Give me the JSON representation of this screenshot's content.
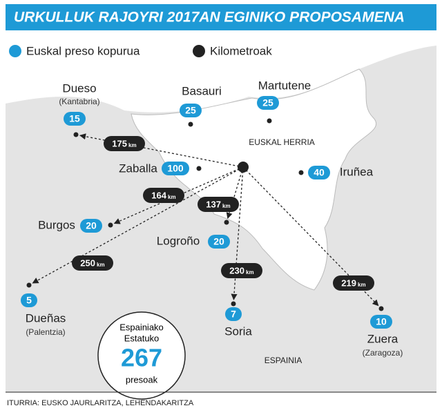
{
  "header": {
    "title": "URKULLUK RAJOYRI 2017AN EGINIKO PROPOSAMENA"
  },
  "legend": {
    "prisoners": "Euskal preso kopurua",
    "distance": "Kilometroak"
  },
  "distance_unit": "km",
  "regions": {
    "home": "EUSKAL HERRIA",
    "state": "ESPAINIA"
  },
  "places": [
    {
      "name": "Dueso",
      "province": "(Kantabria)",
      "prisoners": 15,
      "distance": 175
    },
    {
      "name": "Basauri",
      "prisoners": 25
    },
    {
      "name": "Martutene",
      "prisoners": 25
    },
    {
      "name": "Zaballa",
      "prisoners": 100
    },
    {
      "name": "Iruñea",
      "prisoners": 40
    },
    {
      "name": "Burgos",
      "prisoners": 20,
      "distance": 164
    },
    {
      "name": "Logroño",
      "prisoners": 20,
      "distance": 137
    },
    {
      "name": "Dueñas",
      "province": "(Palentzia)",
      "prisoners": 5,
      "distance": 250
    },
    {
      "name": "Soria",
      "prisoners": 7,
      "distance": 230
    },
    {
      "name": "Zuera",
      "province": "(Zaragoza)",
      "prisoners": 10,
      "distance": 219
    }
  ],
  "total": {
    "line1": "Espainiako",
    "line2": "Estatuko",
    "value": 267,
    "line3": "presoak"
  },
  "source": "ITURRIA: EUSKO JAURLARITZA, LEHENDAKARITZA"
}
